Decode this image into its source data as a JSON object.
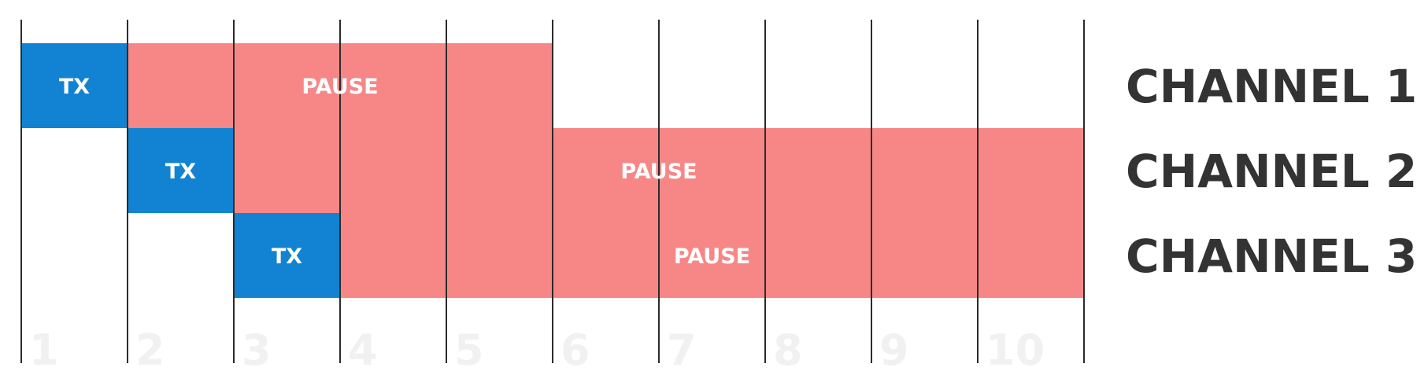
{
  "timeslots": [
    "1",
    "2",
    "3",
    "4",
    "5",
    "6",
    "7",
    "8",
    "9",
    "10"
  ],
  "colors": {
    "tx": "#1283d2",
    "pause": "#f78787",
    "text": "#333333",
    "grid": "#2b2b2b",
    "slot_number": "#f1f1f1"
  },
  "channels": [
    {
      "label": "CHANNEL 1",
      "segments": [
        {
          "kind": "tx",
          "label": "TX",
          "start": 0,
          "end": 1
        },
        {
          "kind": "pause",
          "label": "PAUSE",
          "start": 1,
          "end": 5
        }
      ]
    },
    {
      "label": "CHANNEL 2",
      "segments": [
        {
          "kind": "tx",
          "label": "TX",
          "start": 1,
          "end": 2
        },
        {
          "kind": "pause",
          "label": "PAUSE",
          "start": 2,
          "end": 10
        }
      ]
    },
    {
      "label": "CHANNEL 3",
      "segments": [
        {
          "kind": "tx",
          "label": "TX",
          "start": 2,
          "end": 3
        },
        {
          "kind": "pause",
          "label": "PAUSE",
          "start": 3,
          "end": 10
        }
      ]
    }
  ]
}
